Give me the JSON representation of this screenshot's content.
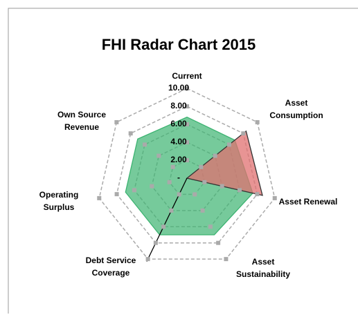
{
  "chart_data": {
    "type": "radar",
    "title": "FHI Radar Chart 2015",
    "categories": [
      "Current",
      "Asset Consumption",
      "Asset Renewal",
      "Asset Sustainability",
      "Debt Service Coverage",
      "Operating Surplus",
      "Own Source Revenue"
    ],
    "series": [
      {
        "color": "#3cb371",
        "fill": true,
        "values": [
          6.8,
          6.8,
          7.5,
          7,
          7,
          7,
          7
        ]
      },
      {
        "color": "#e07070",
        "fill": true,
        "values": [
          0,
          8.4,
          8.6,
          0,
          0,
          0,
          0
        ]
      },
      {
        "color": "#000000",
        "fill": false,
        "values": [
          0,
          0,
          0,
          0,
          10.3,
          0,
          0
        ]
      }
    ],
    "ylim": [
      0,
      10
    ],
    "yticks": [
      {
        "value": 0,
        "label": "-"
      },
      {
        "value": 2,
        "label": "2.00"
      },
      {
        "value": 4,
        "label": "4.00"
      },
      {
        "value": 6,
        "label": "6.00"
      },
      {
        "value": 8,
        "label": "8.00"
      },
      {
        "value": 10,
        "label": "10.00"
      }
    ],
    "grid": true
  }
}
